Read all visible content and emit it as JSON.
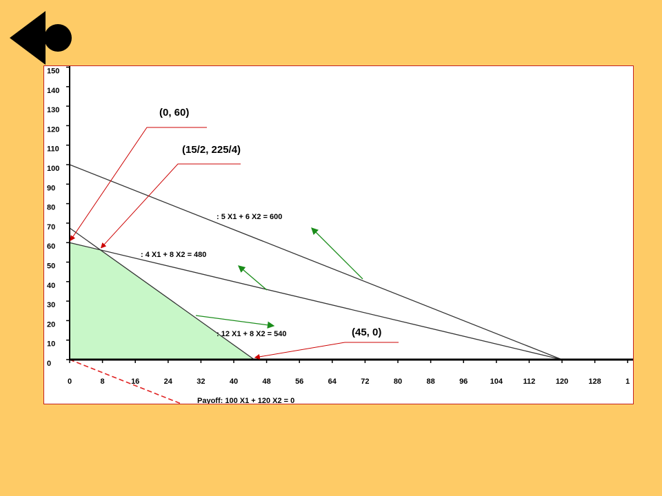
{
  "callouts": {
    "p1": "(0, 60)",
    "p2": "(15/2, 225/4)",
    "p3": "(45, 0)"
  },
  "constraints": [
    {
      "a": 5,
      "b": 6,
      "c": 600,
      "label": ":    5 X1 +    6 X2 =   600"
    },
    {
      "a": 4,
      "b": 8,
      "c": 480,
      "label": ":    4 X1 +    8 X2 =   480"
    },
    {
      "a": 12,
      "b": 8,
      "c": 540,
      "label": ":    12 X1 +    8 X2 =   540"
    }
  ],
  "payoff": {
    "a": 100,
    "b": 120,
    "c": 0,
    "label": "Payoff:   100 X1 +   120 X2 =     0"
  },
  "chart_data": {
    "type": "line",
    "x_ticks": [
      "0",
      "8",
      "16",
      "24",
      "32",
      "40",
      "48",
      "56",
      "64",
      "72",
      "80",
      "88",
      "96",
      "104",
      "112",
      "120",
      "128",
      "1"
    ],
    "y_ticks": [
      "0",
      "10",
      "20",
      "30",
      "40",
      "50",
      "60",
      "70",
      "80",
      "90",
      "100",
      "110",
      "120",
      "130",
      "140",
      "150"
    ],
    "feasible_region": [
      [
        0,
        0
      ],
      [
        0,
        60
      ],
      [
        7.5,
        56.25
      ],
      [
        45,
        0
      ]
    ],
    "vertices": [
      [
        0,
        60
      ],
      [
        7.5,
        56.25
      ],
      [
        45,
        0
      ]
    ],
    "xlim": [
      0,
      136
    ],
    "ylim": [
      0,
      150
    ],
    "colors": {
      "feasible_fill": "#c8f7c8",
      "constraint_line": "#333333",
      "payoff_line": "#e02020",
      "arrow_green": "#1a8c1a",
      "arrow_red": "#cc0000"
    }
  }
}
